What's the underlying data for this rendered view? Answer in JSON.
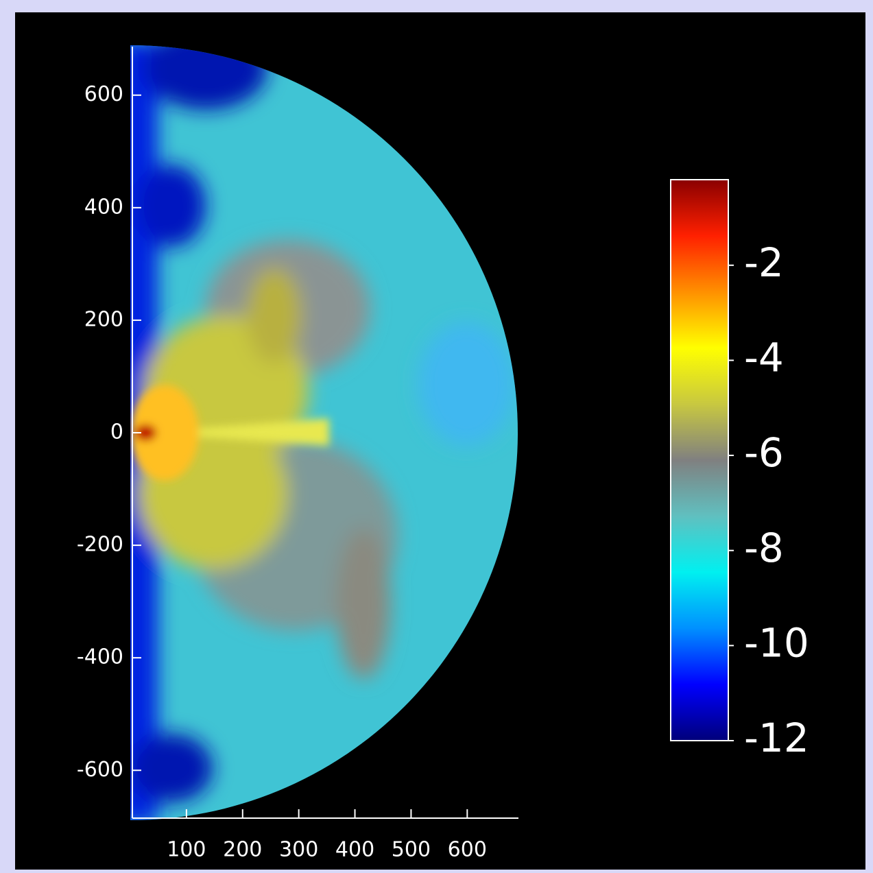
{
  "chart_data": {
    "type": "heatmap",
    "xlim": [
      0,
      690
    ],
    "xticks": [
      100,
      200,
      300,
      400,
      500,
      600
    ],
    "ylim": [
      -685,
      685
    ],
    "yticks": [
      -600,
      -400,
      -200,
      0,
      200,
      400,
      600
    ],
    "colorbar": {
      "clim": [
        -12,
        -0.2
      ],
      "ticks": [
        -2,
        -4,
        -6,
        -8,
        -10,
        -12
      ],
      "colormap": [
        "#00007a",
        "#0000ff",
        "#0090ff",
        "#00f0f0",
        "#60c0c0",
        "#808080",
        "#c8c840",
        "#ffff00",
        "#ff9000",
        "#ff2000",
        "#8a0000"
      ]
    }
  }
}
